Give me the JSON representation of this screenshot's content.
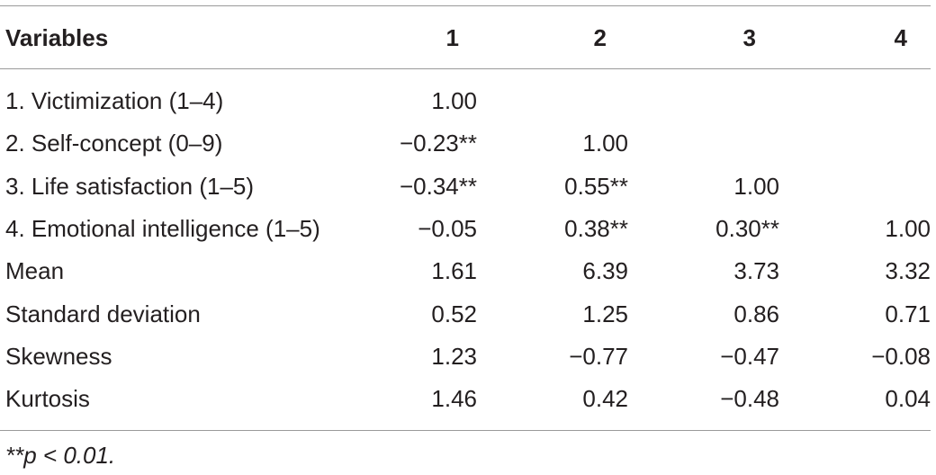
{
  "table": {
    "headers": [
      "Variables",
      "1",
      "2",
      "3",
      "4"
    ],
    "rows": [
      {
        "label": "1. Victimization (1–4)",
        "c1": "1.00",
        "c2": "",
        "c3": "",
        "c4": ""
      },
      {
        "label": "2. Self-concept (0–9)",
        "c1": "−0.23**",
        "c2": "1.00",
        "c3": "",
        "c4": ""
      },
      {
        "label": "3. Life satisfaction (1–5)",
        "c1": "−0.34**",
        "c2": "0.55**",
        "c3": "1.00",
        "c4": ""
      },
      {
        "label": "4. Emotional intelligence (1–5)",
        "c1": "−0.05",
        "c2": "0.38**",
        "c3": "0.30**",
        "c4": "1.00"
      },
      {
        "label": "Mean",
        "c1": "1.61",
        "c2": "6.39",
        "c3": "3.73",
        "c4": "3.32"
      },
      {
        "label": "Standard deviation",
        "c1": "0.52",
        "c2": "1.25",
        "c3": "0.86",
        "c4": "0.71"
      },
      {
        "label": "Skewness",
        "c1": "1.23",
        "c2": "−0.77",
        "c3": "−0.47",
        "c4": "−0.08"
      },
      {
        "label": "Kurtosis",
        "c1": "1.46",
        "c2": "0.42",
        "c3": "−0.48",
        "c4": "0.04"
      }
    ],
    "footnote": "**p < 0.01."
  }
}
